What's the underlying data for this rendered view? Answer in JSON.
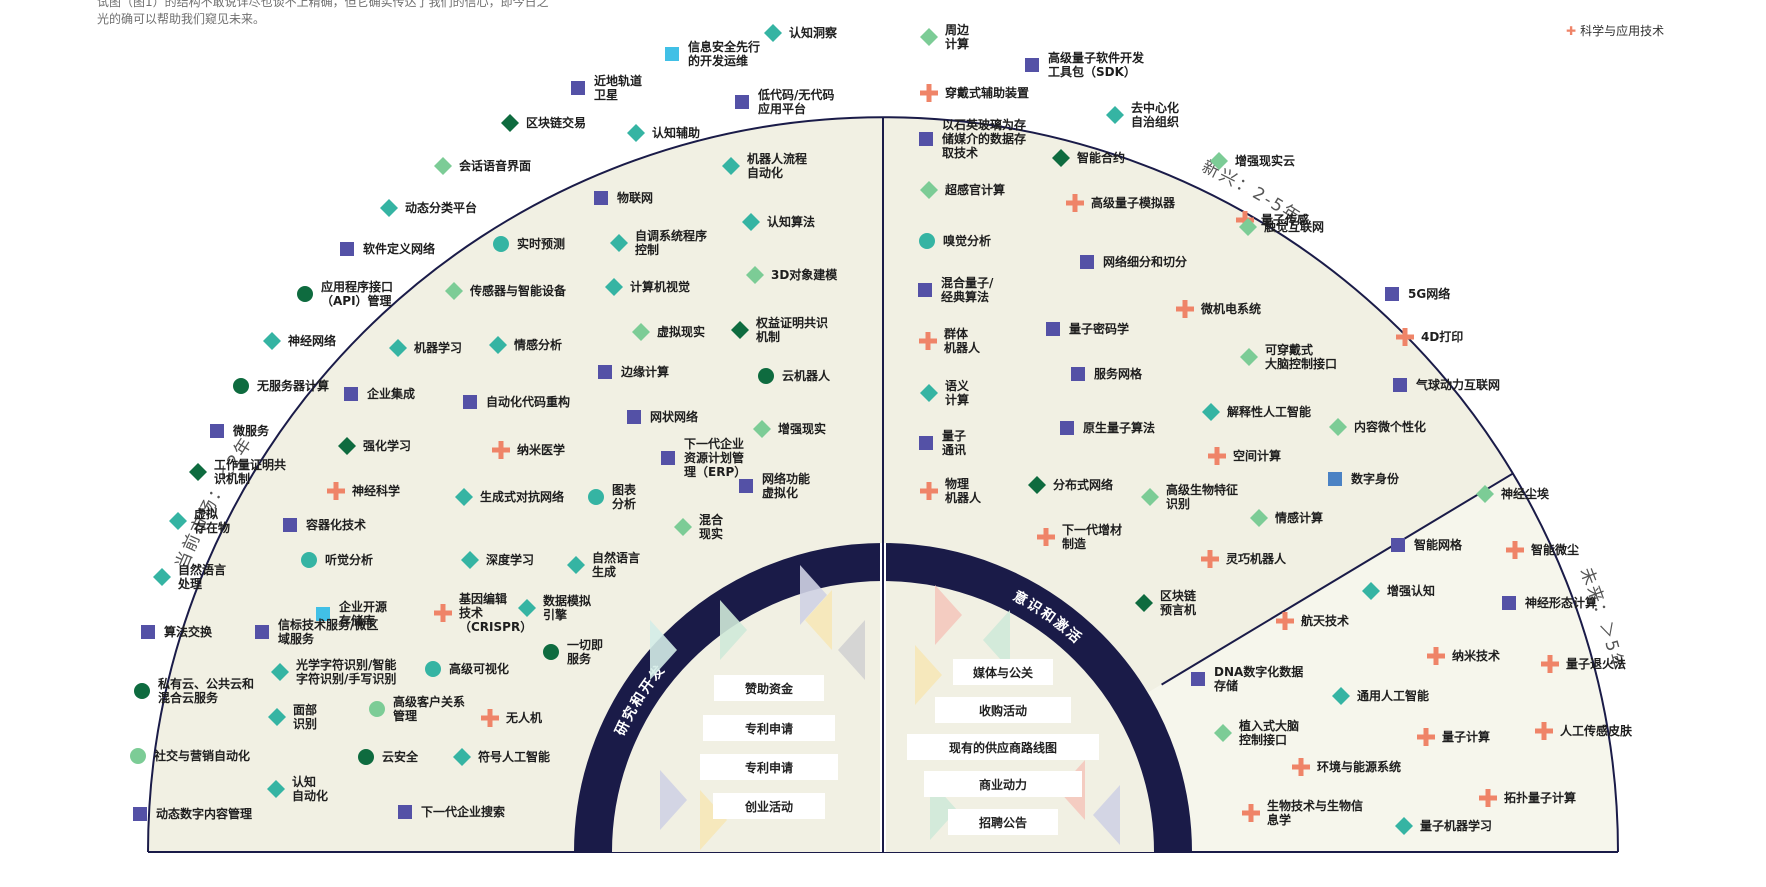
{
  "intro_text": "试图（图1）的结构不敢说详尽也谈不上精确，但它确实传达了我们的信心，即今日之光的确可以帮助我们窥见未来。",
  "legend_text": "科学与应用技术",
  "colors": {
    "bg_left": "#f1f0e3",
    "bg_right": "#f1f0e3",
    "bg_future": "#f6f6ec",
    "navy": "#1a1b48",
    "square": "#5451a6",
    "teal": "#35b4a3",
    "light_green": "#7ccc96",
    "dark_green": "#0e6b3f",
    "plus": "#ef8468",
    "cyan": "#41c0e6",
    "blue": "#4b82c4"
  },
  "quadrants": {
    "current": "当前市场：＜2年",
    "emerging": "新兴：2-5年",
    "future": "未来：＞5年"
  },
  "arc_labels": {
    "rd": "研究和开发",
    "awareness": "意识和激活"
  },
  "rd_buttons": [
    "赞助资金",
    "专利申请",
    "专利申请",
    "创业活动"
  ],
  "awareness_buttons": [
    "媒体与公关",
    "收购活动",
    "现有的供应商路线图",
    "商业动力",
    "招聘公告"
  ],
  "items_current": [
    {
      "label": "认知洞察",
      "icon": "teal-diamond"
    },
    {
      "label": "信息安全先行|的开发运维",
      "icon": "cyan-square"
    },
    {
      "label": "近地轨道|卫星",
      "icon": "square"
    },
    {
      "label": "低代码/无代码|应用平台",
      "icon": "square"
    },
    {
      "label": "区块链交易",
      "icon": "dark-diamond"
    },
    {
      "label": "认知辅助",
      "icon": "teal-diamond"
    },
    {
      "label": "会话语音界面",
      "icon": "light-diamond"
    },
    {
      "label": "机器人流程|自动化",
      "icon": "teal-diamond"
    },
    {
      "label": "物联网",
      "icon": "square"
    },
    {
      "label": "动态分类平台",
      "icon": "teal-diamond"
    },
    {
      "label": "认知算法",
      "icon": "teal-diamond"
    },
    {
      "label": "软件定义网络",
      "icon": "square"
    },
    {
      "label": "实时预测",
      "icon": "teal-circle"
    },
    {
      "label": "自调系统程序|控制",
      "icon": "teal-diamond"
    },
    {
      "label": "应用程序接口|（API）管理",
      "icon": "dark-circle"
    },
    {
      "label": "传感器与智能设备",
      "icon": "light-diamond"
    },
    {
      "label": "计算机视觉",
      "icon": "teal-diamond"
    },
    {
      "label": "3D对象建模",
      "icon": "light-diamond"
    },
    {
      "label": "神经网络",
      "icon": "teal-diamond"
    },
    {
      "label": "机器学习",
      "icon": "teal-diamond"
    },
    {
      "label": "情感分析",
      "icon": "teal-diamond"
    },
    {
      "label": "虚拟现实",
      "icon": "light-diamond"
    },
    {
      "label": "权益证明共识|机制",
      "icon": "dark-diamond"
    },
    {
      "label": "无服务器计算",
      "icon": "dark-circle"
    },
    {
      "label": "企业集成",
      "icon": "square"
    },
    {
      "label": "边缘计算",
      "icon": "square"
    },
    {
      "label": "云机器人",
      "icon": "dark-circle"
    },
    {
      "label": "自动化代码重构",
      "icon": "square"
    },
    {
      "label": "微服务",
      "icon": "square"
    },
    {
      "label": "强化学习",
      "icon": "dark-diamond"
    },
    {
      "label": "网状网络",
      "icon": "square"
    },
    {
      "label": "增强现实",
      "icon": "light-diamond"
    },
    {
      "label": "工作量证明共|识机制",
      "icon": "dark-diamond"
    },
    {
      "label": "纳米医学",
      "icon": "plus"
    },
    {
      "label": "下一代企业|资源计划管|理（ERP）",
      "icon": "square"
    },
    {
      "label": "网络功能|虚拟化",
      "icon": "square"
    },
    {
      "label": "神经科学",
      "icon": "plus"
    },
    {
      "label": "生成式对抗网络",
      "icon": "teal-diamond"
    },
    {
      "label": "图表|分析",
      "icon": "teal-circle"
    },
    {
      "label": "虚拟|存在物",
      "icon": "teal-diamond"
    },
    {
      "label": "容器化技术",
      "icon": "square"
    },
    {
      "label": "混合|现实",
      "icon": "light-diamond"
    },
    {
      "label": "听觉分析",
      "icon": "teal-circle"
    },
    {
      "label": "深度学习",
      "icon": "teal-diamond"
    },
    {
      "label": "自然语言|生成",
      "icon": "teal-diamond"
    },
    {
      "label": "自然语言|处理",
      "icon": "teal-diamond"
    },
    {
      "label": "企业开源|存储库",
      "icon": "cyan-square"
    },
    {
      "label": "基因编辑|技术|（CRISPR）",
      "icon": "plus"
    },
    {
      "label": "数据模拟|引擎",
      "icon": "teal-diamond"
    },
    {
      "label": "算法交换",
      "icon": "square"
    },
    {
      "label": "信标技术服务/微区|域服务",
      "icon": "square"
    },
    {
      "label": "一切即|服务",
      "icon": "dark-circle"
    },
    {
      "label": "光学字符识别/智能|字符识别/手写识别",
      "icon": "teal-diamond"
    },
    {
      "label": "高级可视化",
      "icon": "teal-circle"
    },
    {
      "label": "私有云、公共云和|混合云服务",
      "icon": "dark-circle"
    },
    {
      "label": "面部|识别",
      "icon": "teal-diamond"
    },
    {
      "label": "高级客户关系|管理",
      "icon": "light-circle"
    },
    {
      "label": "无人机",
      "icon": "plus"
    },
    {
      "label": "社交与营销自动化",
      "icon": "light-circle"
    },
    {
      "label": "云安全",
      "icon": "dark-circle"
    },
    {
      "label": "符号人工智能",
      "icon": "teal-diamond"
    },
    {
      "label": "认知|自动化",
      "icon": "teal-diamond"
    },
    {
      "label": "动态数字内容管理",
      "icon": "square"
    },
    {
      "label": "下一代企业搜索",
      "icon": "square"
    }
  ],
  "items_emerging": [
    {
      "label": "周边|计算",
      "icon": "light-diamond"
    },
    {
      "label": "高级量子软件开发|工具包（SDK）",
      "icon": "square"
    },
    {
      "label": "穿戴式辅助装置",
      "icon": "plus"
    },
    {
      "label": "去中心化|自治组织",
      "icon": "teal-diamond"
    },
    {
      "label": "以石英玻璃为存|储媒介的数据存|取技术",
      "icon": "square"
    },
    {
      "label": "智能合约",
      "icon": "dark-diamond"
    },
    {
      "label": "增强现实云",
      "icon": "light-diamond"
    },
    {
      "label": "超感官计算",
      "icon": "light-diamond"
    },
    {
      "label": "高级量子模拟器",
      "icon": "plus"
    },
    {
      "label": "量子传感",
      "icon": "plus"
    },
    {
      "label": "触觉互联网",
      "icon": "light-diamond"
    },
    {
      "label": "嗅觉分析",
      "icon": "teal-circle"
    },
    {
      "label": "网络细分和切分",
      "icon": "square"
    },
    {
      "label": "混合量子/|经典算法",
      "icon": "square"
    },
    {
      "label": "5G网络",
      "icon": "square"
    },
    {
      "label": "微机电系统",
      "icon": "plus"
    },
    {
      "label": "量子密码学",
      "icon": "square"
    },
    {
      "label": "群体|机器人",
      "icon": "plus"
    },
    {
      "label": "4D打印",
      "icon": "plus"
    },
    {
      "label": "可穿戴式|大脑控制接口",
      "icon": "light-diamond"
    },
    {
      "label": "服务网格",
      "icon": "square"
    },
    {
      "label": "语义|计算",
      "icon": "teal-diamond"
    },
    {
      "label": "气球动力互联网",
      "icon": "square"
    },
    {
      "label": "解释性人工智能",
      "icon": "teal-diamond"
    },
    {
      "label": "原生量子算法",
      "icon": "square"
    },
    {
      "label": "内容微个性化",
      "icon": "light-diamond"
    },
    {
      "label": "量子|通讯",
      "icon": "square"
    },
    {
      "label": "空间计算",
      "icon": "plus"
    },
    {
      "label": "数字身份",
      "icon": "blue-square"
    },
    {
      "label": "分布式网络",
      "icon": "dark-diamond"
    },
    {
      "label": "物理|机器人",
      "icon": "plus"
    },
    {
      "label": "高级生物特征|识别",
      "icon": "light-diamond"
    },
    {
      "label": "情感计算",
      "icon": "light-diamond"
    },
    {
      "label": "下一代增材|制造",
      "icon": "plus"
    },
    {
      "label": "灵巧机器人",
      "icon": "plus"
    },
    {
      "label": "区块链|预言机",
      "icon": "dark-diamond"
    }
  ],
  "items_future": [
    {
      "label": "神经尘埃",
      "icon": "light-diamond"
    },
    {
      "label": "智能网格",
      "icon": "square"
    },
    {
      "label": "智能微尘",
      "icon": "plus"
    },
    {
      "label": "增强认知",
      "icon": "teal-diamond"
    },
    {
      "label": "神经形态计算",
      "icon": "square"
    },
    {
      "label": "航天技术",
      "icon": "plus"
    },
    {
      "label": "纳米技术",
      "icon": "plus"
    },
    {
      "label": "量子退火法",
      "icon": "plus"
    },
    {
      "label": "DNA数字化数据|存储",
      "icon": "square"
    },
    {
      "label": "通用人工智能",
      "icon": "teal-diamond"
    },
    {
      "label": "植入式大脑|控制接口",
      "icon": "light-diamond"
    },
    {
      "label": "量子计算",
      "icon": "plus"
    },
    {
      "label": "人工传感皮肤",
      "icon": "plus"
    },
    {
      "label": "环境与能源系统",
      "icon": "plus"
    },
    {
      "label": "拓扑量子计算",
      "icon": "plus"
    },
    {
      "label": "生物技术与生物信|息学",
      "icon": "plus"
    },
    {
      "label": "量子机器学习",
      "icon": "teal-diamond"
    }
  ]
}
